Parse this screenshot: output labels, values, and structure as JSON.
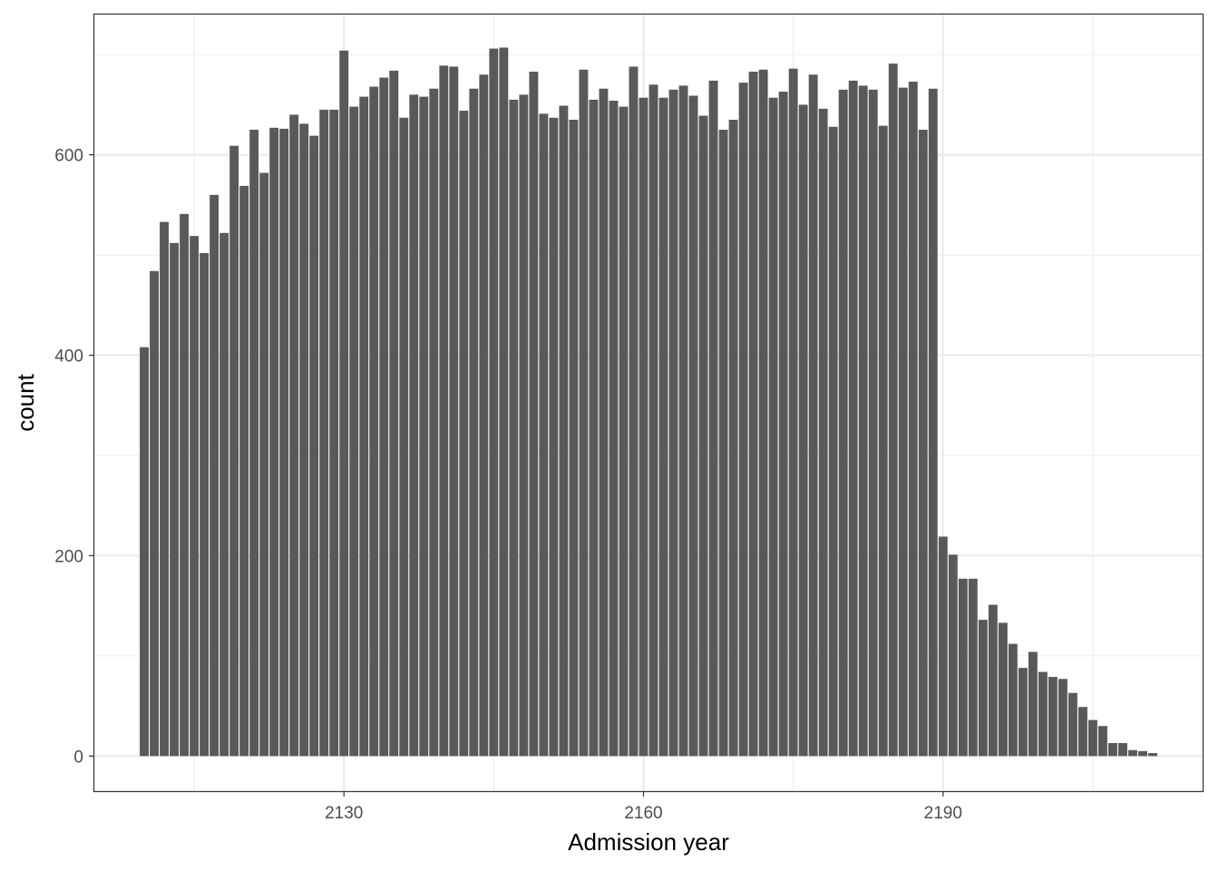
{
  "chart_data": {
    "type": "bar",
    "title": "",
    "xlabel": "Admission year",
    "ylabel": "count",
    "x": [
      2110,
      2111,
      2112,
      2113,
      2114,
      2115,
      2116,
      2117,
      2118,
      2119,
      2120,
      2121,
      2122,
      2123,
      2124,
      2125,
      2126,
      2127,
      2128,
      2129,
      2130,
      2131,
      2132,
      2133,
      2134,
      2135,
      2136,
      2137,
      2138,
      2139,
      2140,
      2141,
      2142,
      2143,
      2144,
      2145,
      2146,
      2147,
      2148,
      2149,
      2150,
      2151,
      2152,
      2153,
      2154,
      2155,
      2156,
      2157,
      2158,
      2159,
      2160,
      2161,
      2162,
      2163,
      2164,
      2165,
      2166,
      2167,
      2168,
      2169,
      2170,
      2171,
      2172,
      2173,
      2174,
      2175,
      2176,
      2177,
      2178,
      2179,
      2180,
      2181,
      2182,
      2183,
      2184,
      2185,
      2186,
      2187,
      2188,
      2189,
      2190,
      2191,
      2192,
      2193,
      2194,
      2195,
      2196,
      2197,
      2198,
      2199,
      2200,
      2201,
      2202,
      2203,
      2204,
      2205,
      2206,
      2207,
      2208,
      2209,
      2210,
      2211
    ],
    "values": [
      408,
      484,
      533,
      512,
      541,
      519,
      502,
      560,
      522,
      609,
      569,
      625,
      582,
      627,
      626,
      640,
      631,
      619,
      645,
      645,
      704,
      648,
      658,
      668,
      677,
      684,
      637,
      660,
      658,
      666,
      689,
      688,
      644,
      666,
      680,
      706,
      707,
      655,
      660,
      683,
      641,
      637,
      649,
      635,
      685,
      655,
      666,
      654,
      648,
      688,
      657,
      670,
      657,
      665,
      669,
      659,
      639,
      674,
      625,
      635,
      672,
      683,
      685,
      657,
      663,
      686,
      650,
      680,
      646,
      628,
      665,
      674,
      669,
      665,
      629,
      691,
      667,
      673,
      625,
      666,
      219,
      201,
      177,
      177,
      136,
      151,
      133,
      112,
      88,
      104,
      84,
      79,
      77,
      63,
      49,
      36,
      30,
      13,
      13,
      6,
      5,
      3
    ],
    "xticks": [
      "2130",
      "2160",
      "2190"
    ],
    "yticks": [
      "0",
      "200",
      "400",
      "600"
    ],
    "xlim": [
      2105,
      2216
    ],
    "ylim": [
      -35,
      740
    ],
    "grid": true,
    "colors": {
      "bar": "#595959",
      "grid": "#ebebeb",
      "panel_border": "#333333"
    }
  }
}
